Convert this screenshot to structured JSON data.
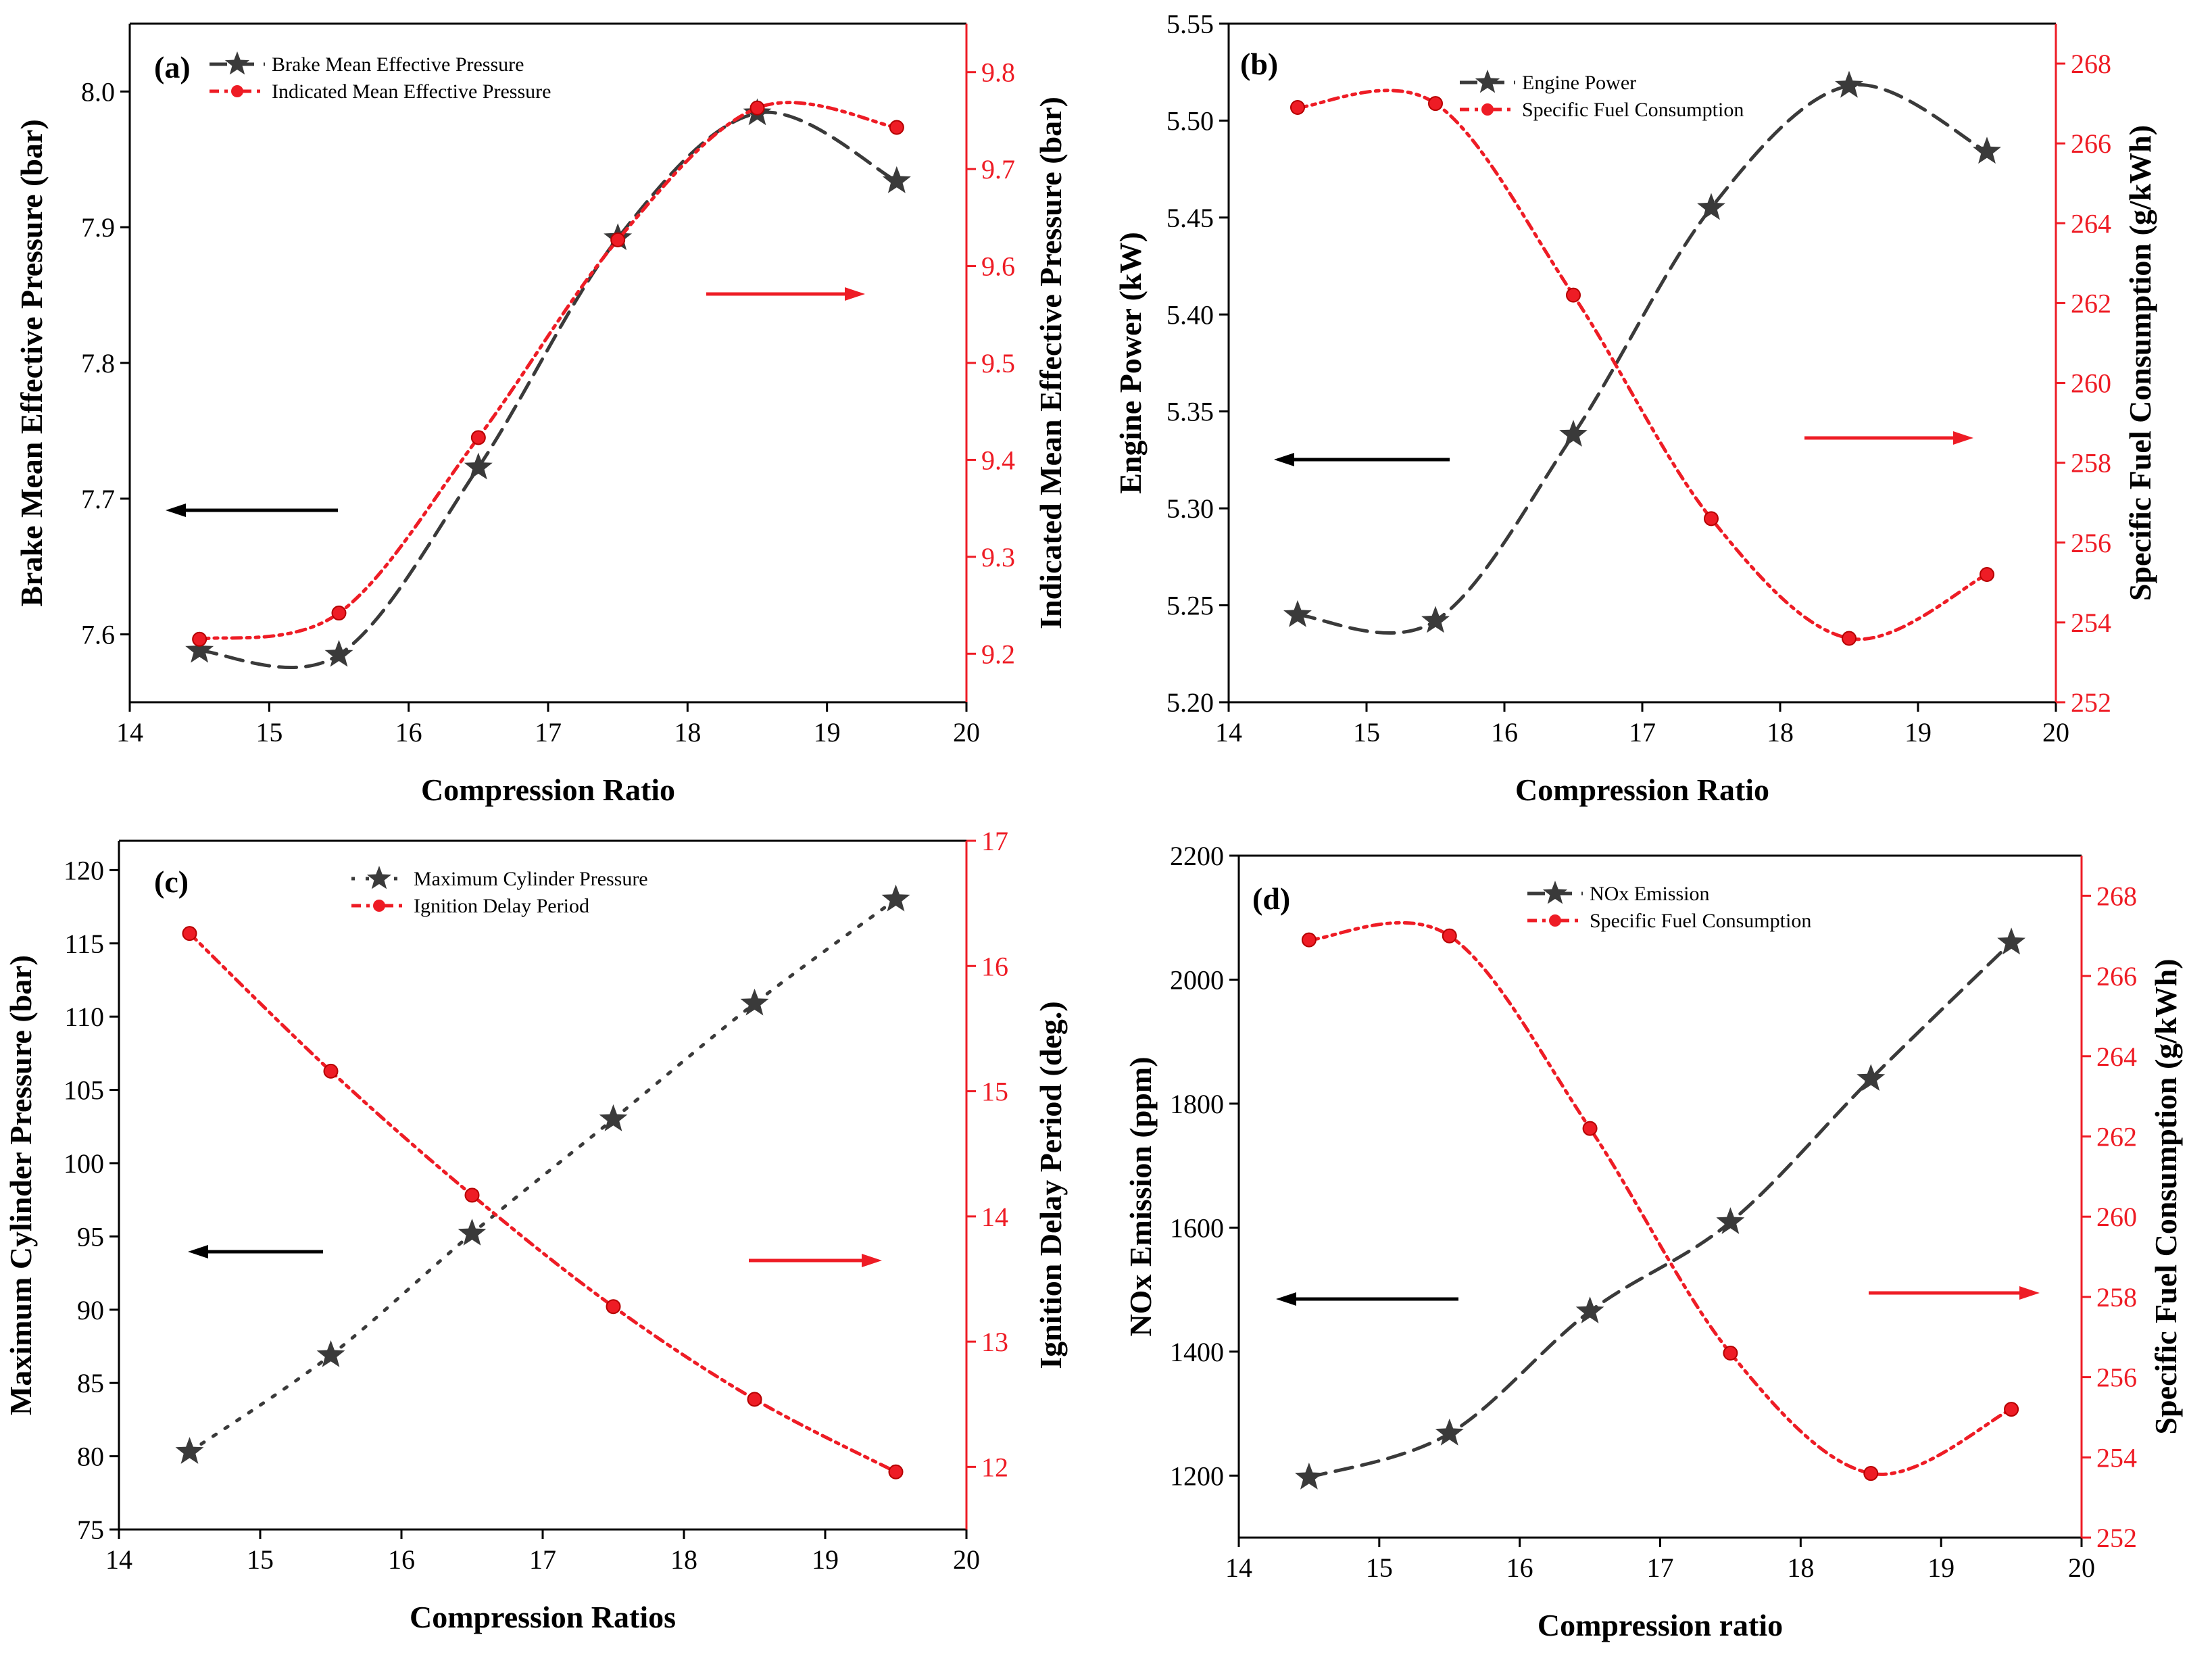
{
  "colors": {
    "left_series": "#3a3a3a",
    "right_series": "#ee1c25",
    "left_arrow": "#000000",
    "right_arrow": "#ee1c25",
    "axis_left": "#000000",
    "axis_right": "#ee1c25"
  },
  "chart_data": [
    {
      "panel": "(a)",
      "type": "line",
      "x": [
        14.5,
        15.5,
        16.5,
        17.5,
        18.5,
        19.5
      ],
      "xlim": [
        14,
        20
      ],
      "xticks": [
        14,
        15,
        16,
        17,
        18,
        19,
        20
      ],
      "xlabel": "Compression Ratio",
      "ylabel_left": "Brake Mean Effective Pressure (bar)",
      "ylim_left": [
        7.55,
        8.05
      ],
      "yticks_left": [
        7.6,
        7.7,
        7.8,
        7.9,
        8.0
      ],
      "yticklabels_left": [
        "7.6",
        "7.7",
        "7.8",
        "7.9",
        "8.0"
      ],
      "ylabel_right": "Indicated Mean Effective Pressure (bar)",
      "ylim_right": [
        9.15,
        9.85
      ],
      "yticks_right": [
        9.2,
        9.3,
        9.4,
        9.5,
        9.6,
        9.7,
        9.8
      ],
      "yticklabels_right": [
        "9.2",
        "9.3",
        "9.4",
        "9.5",
        "9.6",
        "9.7",
        "9.8"
      ],
      "series": [
        {
          "name": "Brake Mean Effective Pressure",
          "axis": "left",
          "marker": "star",
          "style": "dash",
          "values": [
            7.588,
            7.585,
            7.723,
            7.892,
            7.984,
            7.934
          ]
        },
        {
          "name": "Indicated Mean Effective Pressure",
          "axis": "right",
          "marker": "circle",
          "style": "dashdot",
          "values": [
            9.215,
            9.242,
            9.423,
            9.627,
            9.763,
            9.743
          ]
        }
      ],
      "legend": "top-left",
      "arrows": {
        "left": "pointing left (left axis)",
        "right": "pointing right (right axis)"
      }
    },
    {
      "panel": "(b)",
      "type": "line",
      "x": [
        14.5,
        15.5,
        16.5,
        17.5,
        18.5,
        19.5
      ],
      "xlim": [
        14,
        20
      ],
      "xticks": [
        14,
        15,
        16,
        17,
        18,
        19,
        20
      ],
      "xlabel": "Compression Ratio",
      "ylabel_left": "Engine Power (kW)",
      "ylim_left": [
        5.2,
        5.55
      ],
      "yticks_left": [
        5.2,
        5.25,
        5.3,
        5.35,
        5.4,
        5.45,
        5.5,
        5.55
      ],
      "yticklabels_left": [
        "5.20",
        "5.25",
        "5.30",
        "5.35",
        "5.40",
        "5.45",
        "5.50",
        "5.55"
      ],
      "ylabel_right": "Specific Fuel Consumption (g/kWh)",
      "ylim_right": [
        252,
        269
      ],
      "yticks_right": [
        252,
        254,
        256,
        258,
        260,
        262,
        264,
        266,
        268
      ],
      "yticklabels_right": [
        "252",
        "254",
        "256",
        "258",
        "260",
        "262",
        "264",
        "266",
        "268"
      ],
      "series": [
        {
          "name": "Engine Power",
          "axis": "left",
          "marker": "star",
          "style": "dash",
          "values": [
            5.245,
            5.242,
            5.338,
            5.455,
            5.518,
            5.484
          ]
        },
        {
          "name": "Specific Fuel Consumption",
          "axis": "right",
          "marker": "circle",
          "style": "dashdot",
          "values": [
            266.9,
            267.0,
            262.2,
            256.6,
            253.6,
            255.2
          ]
        }
      ],
      "legend": "top-center",
      "arrows": {
        "left": "pointing left (left axis)",
        "right": "pointing right (right axis)"
      }
    },
    {
      "panel": "(c)",
      "type": "line",
      "x": [
        14.5,
        15.5,
        16.5,
        17.5,
        18.5,
        19.5
      ],
      "xlim": [
        14,
        20
      ],
      "xticks": [
        14,
        15,
        16,
        17,
        18,
        19,
        20
      ],
      "xlabel": "Compression Ratios",
      "ylabel_left": "Maximum Cylinder Pressure (bar)",
      "ylim_left": [
        75,
        122
      ],
      "yticks_left": [
        75,
        80,
        85,
        90,
        95,
        100,
        105,
        110,
        115,
        120
      ],
      "yticklabels_left": [
        "75",
        "80",
        "85",
        "90",
        "95",
        "100",
        "105",
        "110",
        "115",
        "120"
      ],
      "ylabel_right": "Ignition Delay Period (deg.)",
      "ylim_right": [
        11.5,
        17
      ],
      "yticks_right": [
        12,
        13,
        14,
        15,
        16,
        17
      ],
      "yticklabels_right": [
        "12",
        "13",
        "14",
        "15",
        "16",
        "17"
      ],
      "series": [
        {
          "name": "Maximum Cylinder Pressure",
          "axis": "left",
          "marker": "star",
          "style": "dot",
          "values": [
            80.3,
            86.9,
            95.2,
            103.0,
            110.9,
            118.0
          ]
        },
        {
          "name": "Ignition Delay Period",
          "axis": "right",
          "marker": "circle",
          "style": "dashdot",
          "values": [
            16.26,
            15.16,
            14.17,
            13.28,
            12.54,
            11.96
          ]
        }
      ],
      "legend": "top-center",
      "arrows": {
        "left": "pointing left (left axis)",
        "right": "pointing right (right axis)"
      }
    },
    {
      "panel": "(d)",
      "type": "line",
      "x": [
        14.5,
        15.5,
        16.5,
        17.5,
        18.5,
        19.5
      ],
      "xlim": [
        14,
        20
      ],
      "xticks": [
        14,
        15,
        16,
        17,
        18,
        19,
        20
      ],
      "xlabel": "Compression ratio",
      "ylabel_left": "NOx Emission (ppm)",
      "ylim_left": [
        1100,
        2200
      ],
      "yticks_left": [
        1200,
        1400,
        1600,
        1800,
        2000,
        2200
      ],
      "yticklabels_left": [
        "1200",
        "1400",
        "1600",
        "1800",
        "2000",
        "2200"
      ],
      "ylabel_right": "Specific Fuel Consumption (g/kWh)",
      "ylim_right": [
        252,
        269
      ],
      "yticks_right": [
        252,
        254,
        256,
        258,
        260,
        262,
        264,
        266,
        268
      ],
      "yticklabels_right": [
        "252",
        "254",
        "256",
        "258",
        "260",
        "262",
        "264",
        "266",
        "268"
      ],
      "series": [
        {
          "name": "NOx Emission",
          "axis": "left",
          "marker": "star",
          "style": "dash",
          "values": [
            1197,
            1268,
            1465,
            1609,
            1840,
            2060
          ]
        },
        {
          "name": "Specific Fuel Consumption",
          "axis": "right",
          "marker": "circle",
          "style": "dashdot",
          "values": [
            266.9,
            267.0,
            262.2,
            256.6,
            253.6,
            255.2
          ]
        }
      ],
      "legend": "top-center",
      "arrows": {
        "left": "pointing left (left axis)",
        "right": "pointing right (right axis)"
      }
    }
  ]
}
